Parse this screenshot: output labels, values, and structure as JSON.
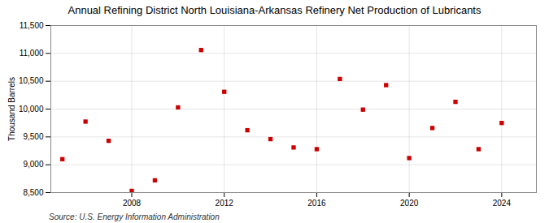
{
  "chart_data": {
    "type": "scatter",
    "title": "Annual Refining District North Louisiana-Arkansas Refinery Net Production of Lubricants",
    "ylabel": "Thousand Barrels",
    "source": "Source: U.S. Energy Information Administration",
    "x": [
      2005,
      2006,
      2007,
      2008,
      2009,
      2010,
      2011,
      2012,
      2013,
      2014,
      2015,
      2016,
      2017,
      2018,
      2019,
      2020,
      2021,
      2022,
      2023,
      2024
    ],
    "values": [
      9100,
      9775,
      9430,
      8530,
      8720,
      10030,
      11060,
      10310,
      9620,
      9460,
      9310,
      9280,
      10540,
      9990,
      10430,
      9120,
      9660,
      10130,
      9280,
      9750
    ],
    "color": "#cc0000",
    "marker": "square",
    "xlim": [
      2004.5,
      2025.5
    ],
    "xticks": [
      2008,
      2012,
      2016,
      2020,
      2024
    ],
    "ylim": [
      8500,
      11500
    ],
    "yticks": [
      {
        "value": 8500,
        "label": "8,500"
      },
      {
        "value": 9000,
        "label": "9,000"
      },
      {
        "value": 9500,
        "label": "9,500"
      },
      {
        "value": 10000,
        "label": "10,000"
      },
      {
        "value": 10500,
        "label": "10,500"
      },
      {
        "value": 11000,
        "label": "11,000"
      },
      {
        "value": 11500,
        "label": "11,500"
      }
    ],
    "grid": true
  }
}
